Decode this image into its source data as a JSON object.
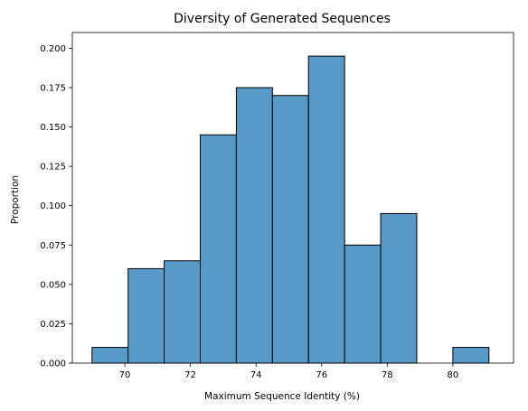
{
  "chart_data": {
    "type": "histogram",
    "title": "Diversity of Generated Sequences",
    "xlabel": "Maximum Sequence Identity (%)",
    "ylabel": "Proportion",
    "xlim": [
      68.4,
      81.85
    ],
    "ylim": [
      0,
      0.21
    ],
    "grid": false,
    "bar_color": "#5799c7",
    "edge_color": "#000000",
    "x_ticks": [
      70,
      72,
      74,
      76,
      78,
      80
    ],
    "x_tick_labels": [
      "70",
      "72",
      "74",
      "76",
      "78",
      "80"
    ],
    "y_ticks": [
      0.0,
      0.025,
      0.05,
      0.075,
      0.1,
      0.125,
      0.15,
      0.175,
      0.2
    ],
    "y_tick_labels": [
      "0.000",
      "0.025",
      "0.050",
      "0.075",
      "0.100",
      "0.125",
      "0.150",
      "0.175",
      "0.200"
    ],
    "bins": [
      {
        "start": 69.0,
        "end": 70.1,
        "value": 0.01
      },
      {
        "start": 70.1,
        "end": 71.2,
        "value": 0.06
      },
      {
        "start": 71.2,
        "end": 72.3,
        "value": 0.065
      },
      {
        "start": 72.3,
        "end": 73.4,
        "value": 0.145
      },
      {
        "start": 73.4,
        "end": 74.5,
        "value": 0.175
      },
      {
        "start": 74.5,
        "end": 75.6,
        "value": 0.17
      },
      {
        "start": 75.6,
        "end": 76.7,
        "value": 0.195
      },
      {
        "start": 76.7,
        "end": 77.8,
        "value": 0.075
      },
      {
        "start": 77.8,
        "end": 78.9,
        "value": 0.095
      },
      {
        "start": 78.9,
        "end": 80.0,
        "value": 0.0
      },
      {
        "start": 80.0,
        "end": 81.1,
        "value": 0.01
      }
    ]
  }
}
